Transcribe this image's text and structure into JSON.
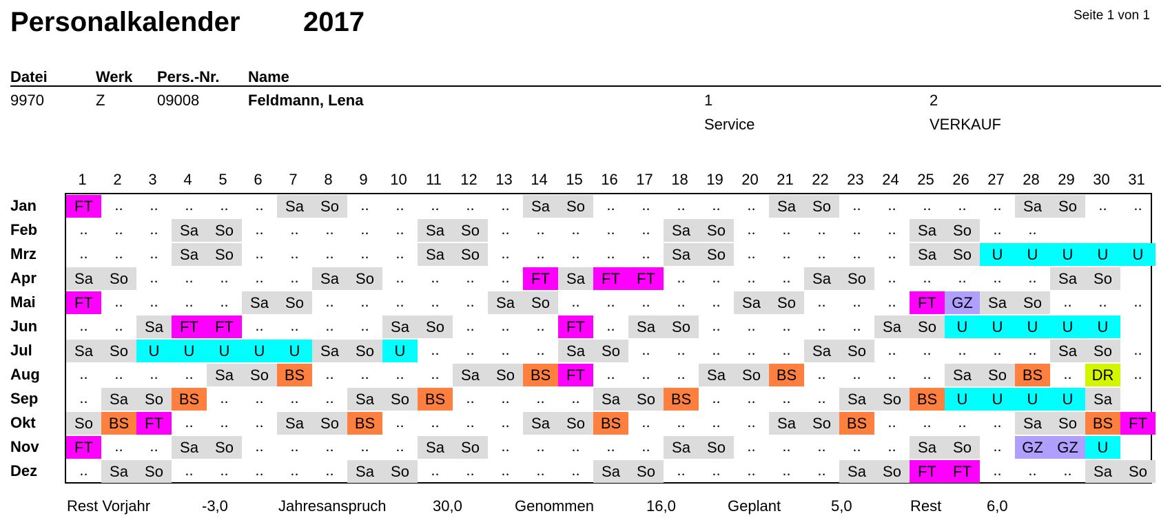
{
  "title": "Personalkalender",
  "year": "2017",
  "page_label": "Seite 1 von 1",
  "header": {
    "datei_label": "Datei",
    "werk_label": "Werk",
    "persnr_label": "Pers.-Nr.",
    "name_label": "Name",
    "datei": "9970",
    "werk": "Z",
    "persnr": "09008",
    "name": "Feldmann, Lena",
    "org1_num": "1",
    "org1_name": "Service",
    "org2_num": "2",
    "org2_name": "VERKAUF"
  },
  "colors": {
    "Sa": "#dcdcdc",
    "So": "#dcdcdc",
    "FT": "#ff00ff",
    "U": "#00ffff",
    "BS": "#ff7f3f",
    "GZ": "#b09fff",
    "DR": "#d4f500"
  },
  "days": [
    "1",
    "2",
    "3",
    "4",
    "5",
    "6",
    "7",
    "8",
    "9",
    "10",
    "11",
    "12",
    "13",
    "14",
    "15",
    "16",
    "17",
    "18",
    "19",
    "20",
    "21",
    "22",
    "23",
    "24",
    "25",
    "26",
    "27",
    "28",
    "29",
    "30",
    "31"
  ],
  "months": [
    {
      "label": "Jan",
      "cells": [
        "FT",
        "..",
        "..",
        "..",
        "..",
        "..",
        "Sa",
        "So",
        "..",
        "..",
        "..",
        "..",
        "..",
        "Sa",
        "So",
        "..",
        "..",
        "..",
        "..",
        "..",
        "Sa",
        "So",
        "..",
        "..",
        "..",
        "..",
        "..",
        "Sa",
        "So",
        "..",
        ".."
      ]
    },
    {
      "label": "Feb",
      "cells": [
        "..",
        "..",
        "..",
        "Sa",
        "So",
        "..",
        "..",
        "..",
        "..",
        "..",
        "Sa",
        "So",
        "..",
        "..",
        "..",
        "..",
        "..",
        "Sa",
        "So",
        "..",
        "..",
        "..",
        "..",
        "..",
        "Sa",
        "So",
        "..",
        "..",
        "",
        "",
        ""
      ]
    },
    {
      "label": "Mrz",
      "cells": [
        "..",
        "..",
        "..",
        "Sa",
        "So",
        "..",
        "..",
        "..",
        "..",
        "..",
        "Sa",
        "So",
        "..",
        "..",
        "..",
        "..",
        "..",
        "Sa",
        "So",
        "..",
        "..",
        "..",
        "..",
        "..",
        "Sa",
        "So",
        "U",
        "U",
        "U",
        "U",
        "U"
      ]
    },
    {
      "label": "Apr",
      "cells": [
        "Sa",
        "So",
        "..",
        "..",
        "..",
        "..",
        "..",
        "Sa",
        "So",
        "..",
        "..",
        "..",
        "..",
        "FT",
        "Sa",
        "FT",
        "FT",
        "..",
        "..",
        "..",
        "..",
        "Sa",
        "So",
        "..",
        "..",
        "..",
        "..",
        "..",
        "Sa",
        "So",
        ""
      ]
    },
    {
      "label": "Mai",
      "cells": [
        "FT",
        "..",
        "..",
        "..",
        "..",
        "Sa",
        "So",
        "..",
        "..",
        "..",
        "..",
        "..",
        "Sa",
        "So",
        "..",
        "..",
        "..",
        "..",
        "..",
        "Sa",
        "So",
        "..",
        "..",
        "..",
        "FT",
        "GZ",
        "Sa",
        "So",
        "..",
        "..",
        ".."
      ]
    },
    {
      "label": "Jun",
      "cells": [
        "..",
        "..",
        "Sa",
        "FT",
        "FT",
        "..",
        "..",
        "..",
        "..",
        "Sa",
        "So",
        "..",
        "..",
        "..",
        "FT",
        "..",
        "Sa",
        "So",
        "..",
        "..",
        "..",
        "..",
        "..",
        "Sa",
        "So",
        "U",
        "U",
        "U",
        "U",
        "U",
        ""
      ]
    },
    {
      "label": "Jul",
      "cells": [
        "Sa",
        "So",
        "U",
        "U",
        "U",
        "U",
        "U",
        "Sa",
        "So",
        "U",
        "..",
        "..",
        "..",
        "..",
        "Sa",
        "So",
        "..",
        "..",
        "..",
        "..",
        "..",
        "Sa",
        "So",
        "..",
        "..",
        "..",
        "..",
        "..",
        "Sa",
        "So",
        ".."
      ]
    },
    {
      "label": "Aug",
      "cells": [
        "..",
        "..",
        "..",
        "..",
        "Sa",
        "So",
        "BS",
        "..",
        "..",
        "..",
        "..",
        "Sa",
        "So",
        "BS",
        "FT",
        "..",
        "..",
        "..",
        "Sa",
        "So",
        "BS",
        "..",
        "..",
        "..",
        "..",
        "Sa",
        "So",
        "BS",
        "..",
        "DR",
        ".."
      ]
    },
    {
      "label": "Sep",
      "cells": [
        "..",
        "Sa",
        "So",
        "BS",
        "..",
        "..",
        "..",
        "..",
        "Sa",
        "So",
        "BS",
        "..",
        "..",
        "..",
        "..",
        "Sa",
        "So",
        "BS",
        "..",
        "..",
        "..",
        "..",
        "Sa",
        "So",
        "BS",
        "U",
        "U",
        "U",
        "U",
        "Sa",
        ""
      ]
    },
    {
      "label": "Okt",
      "cells": [
        "So",
        "BS",
        "FT",
        "..",
        "..",
        "..",
        "Sa",
        "So",
        "BS",
        "..",
        "..",
        "..",
        "..",
        "Sa",
        "So",
        "BS",
        "..",
        "..",
        "..",
        "..",
        "Sa",
        "So",
        "BS",
        "..",
        "..",
        "..",
        "..",
        "Sa",
        "So",
        "BS",
        "FT"
      ]
    },
    {
      "label": "Nov",
      "cells": [
        "FT",
        "..",
        "..",
        "Sa",
        "So",
        "..",
        "..",
        "..",
        "..",
        "..",
        "Sa",
        "So",
        "..",
        "..",
        "..",
        "..",
        "..",
        "Sa",
        "So",
        "..",
        "..",
        "..",
        "..",
        "..",
        "Sa",
        "So",
        "..",
        "GZ",
        "GZ",
        "U",
        ""
      ]
    },
    {
      "label": "Dez",
      "cells": [
        "..",
        "Sa",
        "So",
        "..",
        "..",
        "..",
        "..",
        "..",
        "Sa",
        "So",
        "..",
        "..",
        "..",
        "..",
        "..",
        "Sa",
        "So",
        "..",
        "..",
        "..",
        "..",
        "..",
        "Sa",
        "So",
        "FT",
        "FT",
        "..",
        "..",
        "..",
        "Sa",
        "So"
      ]
    }
  ],
  "summary": {
    "rest_vorjahr_label": "Rest Vorjahr",
    "rest_vorjahr": "-3,0",
    "jahresanspruch_label": "Jahresanspruch",
    "jahresanspruch": "30,0",
    "genommen_label": "Genommen",
    "genommen": "16,0",
    "geplant_label": "Geplant",
    "geplant": "5,0",
    "rest_label": "Rest",
    "rest": "6,0"
  }
}
